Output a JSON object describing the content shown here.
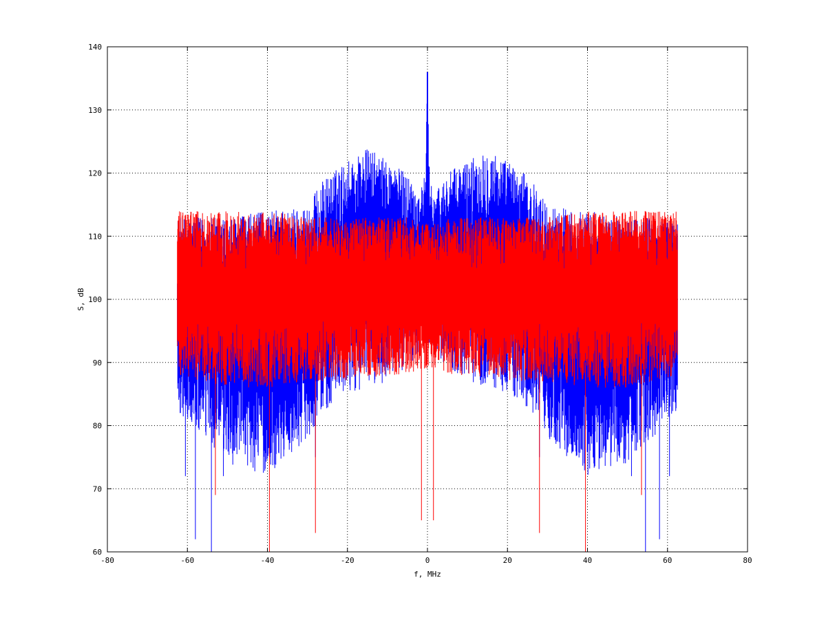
{
  "chart_data": {
    "type": "line",
    "title": "",
    "xlabel": "f, MHz",
    "ylabel": "S, dB",
    "xlim": [
      -80,
      80
    ],
    "ylim": [
      60,
      140
    ],
    "xticks": [
      -80,
      -60,
      -40,
      -20,
      0,
      20,
      40,
      60,
      80
    ],
    "yticks": [
      60,
      70,
      80,
      90,
      100,
      110,
      120,
      130,
      140
    ],
    "grid": true,
    "legend": "none",
    "x_range": [
      -62.5,
      62.5
    ],
    "series": [
      {
        "color": "#0000ff",
        "envelope_x": [
          -62.5,
          -50,
          -40,
          -30,
          -26,
          -20,
          -15,
          -10,
          -5,
          -2,
          -0.5,
          0,
          0.5,
          2,
          5,
          10,
          15,
          20,
          26,
          30,
          40,
          50,
          62.5
        ],
        "envelope_max": [
          113,
          113,
          114,
          115,
          119,
          122,
          124,
          122,
          120,
          117,
          120,
          136,
          120,
          117,
          120,
          122,
          124,
          122,
          119,
          115,
          114,
          113,
          113
        ],
        "envelope_min": [
          82,
          74,
          72,
          78,
          82,
          85,
          86,
          87,
          89,
          92,
          93,
          93,
          93,
          92,
          89,
          87,
          86,
          85,
          82,
          78,
          72,
          74,
          82
        ],
        "deep_dips": [
          [
            -60.5,
            72
          ],
          [
            -58,
            62
          ],
          [
            -54,
            60
          ],
          [
            -51,
            72
          ],
          [
            -28,
            75
          ],
          [
            28,
            75
          ],
          [
            51,
            72
          ],
          [
            54.5,
            60
          ],
          [
            58,
            62
          ],
          [
            60.5,
            72
          ]
        ]
      },
      {
        "color": "#ff0000",
        "envelope_x": [
          -62.5,
          -50,
          -40,
          -30,
          -20,
          -10,
          -5,
          -2,
          0,
          2,
          5,
          10,
          20,
          30,
          40,
          50,
          62.5
        ],
        "envelope_max": [
          114,
          114,
          114,
          113,
          113,
          113,
          113,
          112,
          112,
          112,
          113,
          113,
          113,
          113,
          114,
          114,
          114
        ],
        "envelope_min": [
          88,
          86,
          86,
          87,
          87,
          88,
          88,
          89,
          89,
          89,
          88,
          88,
          87,
          87,
          86,
          86,
          88
        ],
        "deep_dips": [
          [
            -53,
            69
          ],
          [
            -39.5,
            60
          ],
          [
            -28,
            63
          ],
          [
            -1.5,
            65
          ],
          [
            1.5,
            65
          ],
          [
            28,
            63
          ],
          [
            39.5,
            60
          ],
          [
            53.5,
            69
          ]
        ]
      }
    ]
  }
}
